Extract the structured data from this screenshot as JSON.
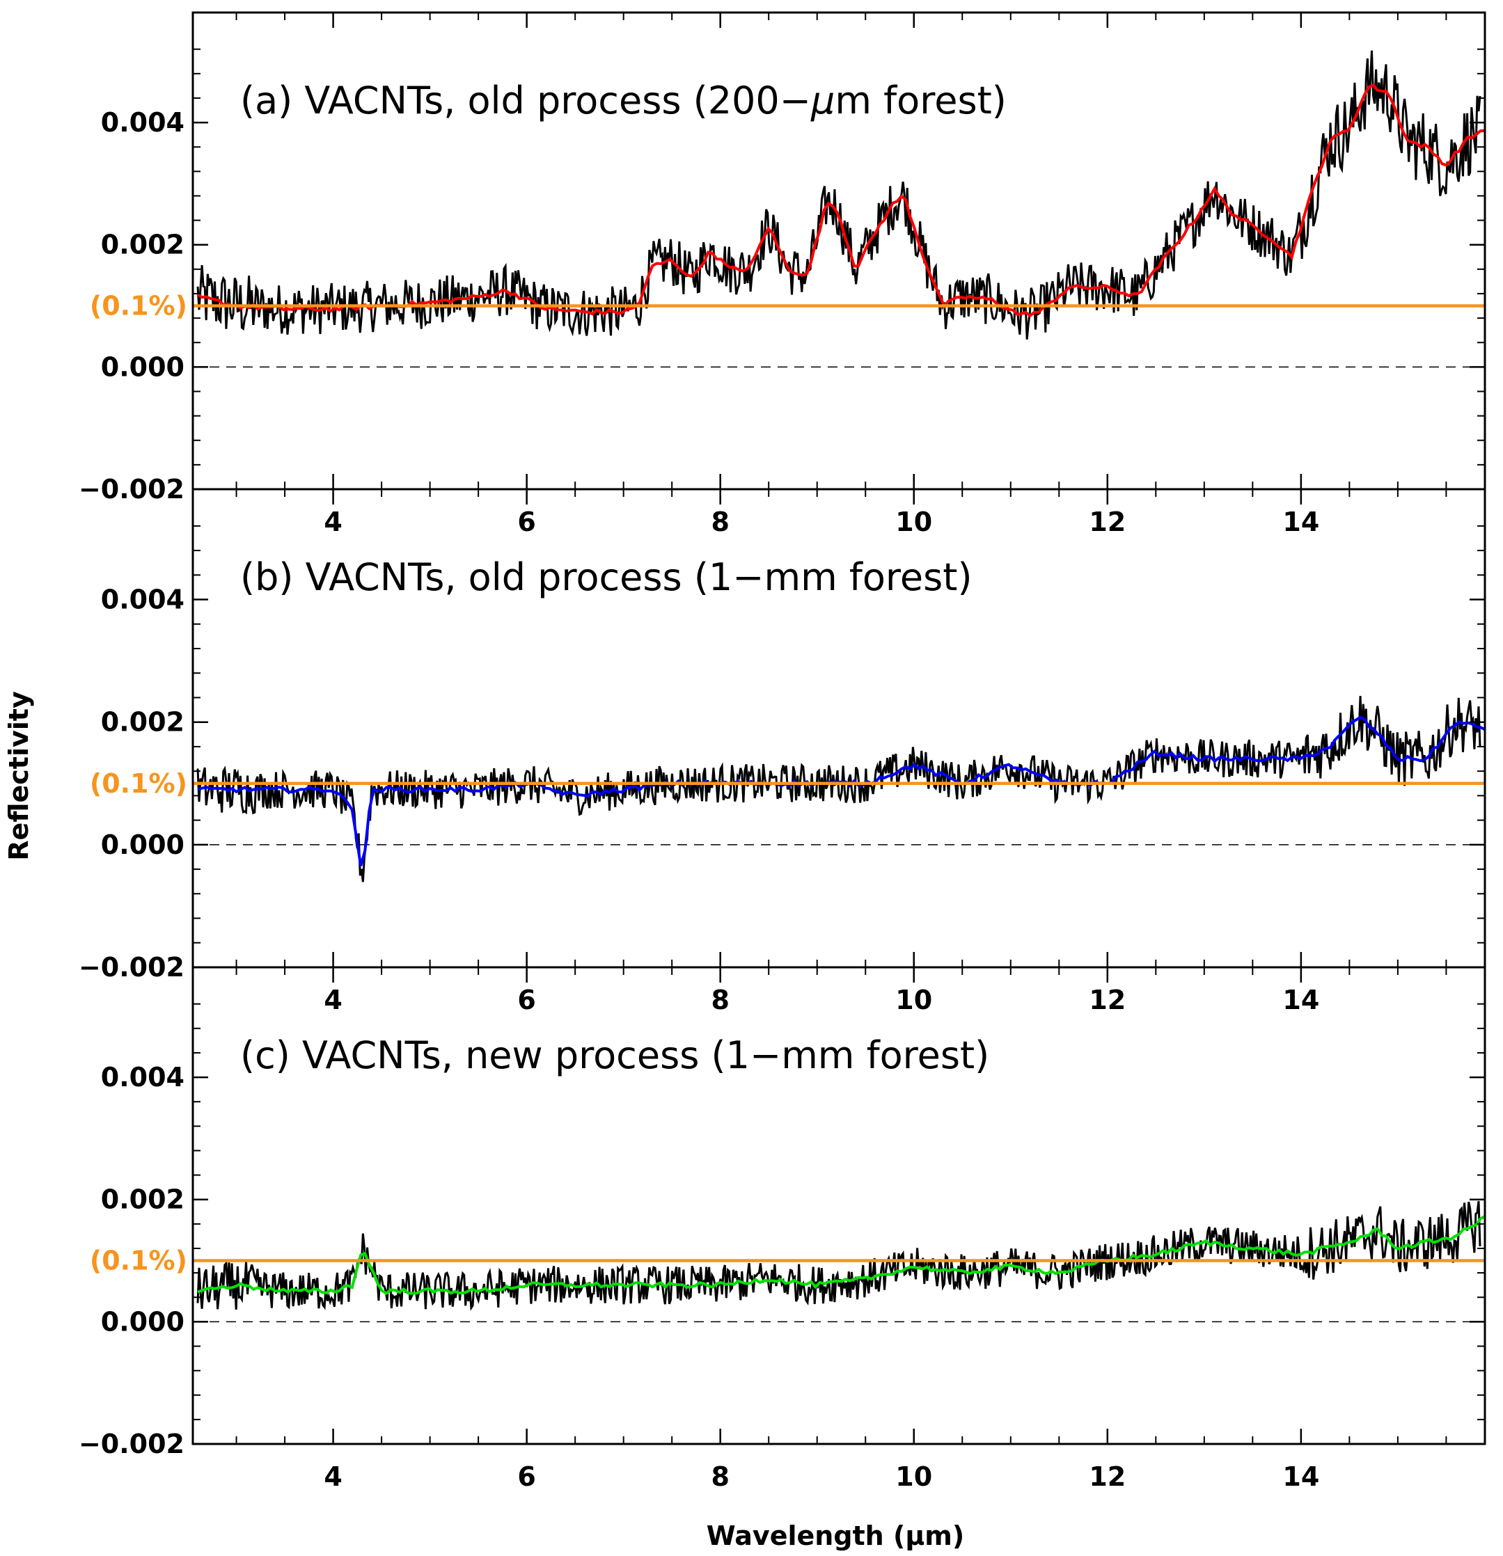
{
  "chart_data": {
    "type": "line",
    "xlabel": "Wavelength (μm)",
    "ylabel": "Reflectivity",
    "xlim": [
      2.55,
      15.9
    ],
    "ylim": [
      -0.002,
      0.0058
    ],
    "x_ticks": [
      4,
      6,
      8,
      10,
      12,
      14
    ],
    "x_tick_labels": [
      "4",
      "6",
      "8",
      "10",
      "12",
      "14"
    ],
    "y_ticks": [
      -0.002,
      0.0,
      0.002,
      0.004
    ],
    "y_tick_labels": [
      "−0.002",
      "0.000",
      "0.002",
      "0.004"
    ],
    "reference_line": {
      "value": 0.001,
      "label": "(0.1%)",
      "color": "#f7941d"
    },
    "zero_line": {
      "value": 0.0,
      "style": "dashed"
    },
    "panels": [
      {
        "id": "a",
        "title": "(a) VACNTs, old process (200-μm forest)",
        "title_main": "(a) VACNTs, old process (200−",
        "title_mu": "μ",
        "title_rest": "m forest)",
        "series": [
          {
            "name": "raw",
            "color": "#000000",
            "noise": 0.0004
          },
          {
            "name": "smoothed",
            "color": "#ff0000",
            "x": [
              2.6,
              3.0,
              3.5,
              4.0,
              4.5,
              5.0,
              5.5,
              5.8,
              6.2,
              6.6,
              7.0,
              7.15,
              7.3,
              7.5,
              7.7,
              7.9,
              8.1,
              8.3,
              8.5,
              8.7,
              8.9,
              9.1,
              9.2,
              9.4,
              9.6,
              9.8,
              9.9,
              10.1,
              10.3,
              10.5,
              10.8,
              11.1,
              11.3,
              11.6,
              12.0,
              12.3,
              12.6,
              12.9,
              13.1,
              13.3,
              13.5,
              13.7,
              13.9,
              14.1,
              14.3,
              14.5,
              14.7,
              14.9,
              15.1,
              15.3,
              15.5,
              15.7,
              15.9
            ],
            "y": [
              0.00115,
              0.001,
              0.00095,
              0.00095,
              0.001,
              0.00105,
              0.00115,
              0.00125,
              0.00095,
              0.0009,
              0.0009,
              0.001,
              0.00165,
              0.00175,
              0.00145,
              0.0019,
              0.0016,
              0.0016,
              0.0023,
              0.0016,
              0.0015,
              0.0027,
              0.0026,
              0.0016,
              0.0022,
              0.0027,
              0.0028,
              0.0018,
              0.001,
              0.00115,
              0.0011,
              0.00085,
              0.0009,
              0.0013,
              0.0013,
              0.00115,
              0.0018,
              0.0024,
              0.0029,
              0.0025,
              0.0023,
              0.0021,
              0.0018,
              0.0028,
              0.0037,
              0.0039,
              0.0046,
              0.0045,
              0.0037,
              0.0036,
              0.0033,
              0.0037,
              0.0039
            ]
          }
        ]
      },
      {
        "id": "b",
        "title": "(b) VACNTs, old process (1-mm forest)",
        "title_main": "(b) VACNTs, old process (1−mm forest)",
        "title_mu": "",
        "title_rest": "",
        "series": [
          {
            "name": "raw",
            "color": "#000000",
            "noise": 0.0003
          },
          {
            "name": "smoothed",
            "color": "#0000ff",
            "x": [
              2.6,
              3.0,
              3.5,
              4.0,
              4.2,
              4.3,
              4.4,
              4.6,
              5.0,
              5.5,
              6.0,
              6.5,
              7.0,
              7.5,
              8.0,
              8.5,
              9.0,
              9.5,
              10.0,
              10.5,
              11.0,
              11.5,
              12.0,
              12.5,
              13.0,
              13.5,
              14.0,
              14.3,
              14.6,
              14.8,
              15.0,
              15.3,
              15.6,
              15.9
            ],
            "y": [
              0.0009,
              0.0009,
              0.0009,
              0.0009,
              0.0006,
              -0.0005,
              0.0009,
              0.0009,
              0.0009,
              0.0009,
              0.001,
              0.0008,
              0.0009,
              0.001,
              0.001,
              0.001,
              0.001,
              0.001,
              0.0013,
              0.001,
              0.0013,
              0.001,
              0.001,
              0.0015,
              0.0014,
              0.0014,
              0.0014,
              0.0016,
              0.0021,
              0.0018,
              0.0014,
              0.0014,
              0.002,
              0.0019
            ]
          }
        ]
      },
      {
        "id": "c",
        "title": "(c) VACNTs, new process (1-mm forest)",
        "title_main": "(c) VACNTs, new process (1−mm forest)",
        "title_mu": "",
        "title_rest": "",
        "series": [
          {
            "name": "raw",
            "color": "#000000",
            "noise": 0.0003
          },
          {
            "name": "smoothed",
            "color": "#00e000",
            "x": [
              2.6,
              3.0,
              3.5,
              4.0,
              4.2,
              4.3,
              4.5,
              5.0,
              5.5,
              6.0,
              6.5,
              7.0,
              7.5,
              8.0,
              8.5,
              9.0,
              9.5,
              10.0,
              10.5,
              11.0,
              11.5,
              12.0,
              12.5,
              13.0,
              13.5,
              14.0,
              14.5,
              14.8,
              15.0,
              15.3,
              15.6,
              15.9
            ],
            "y": [
              0.0005,
              0.0006,
              0.0005,
              0.0005,
              0.0006,
              0.0012,
              0.0005,
              0.0005,
              0.0005,
              0.0006,
              0.0006,
              0.0006,
              0.0006,
              0.0006,
              0.0007,
              0.0006,
              0.0007,
              0.0009,
              0.0008,
              0.0009,
              0.0008,
              0.001,
              0.0011,
              0.0013,
              0.0012,
              0.0011,
              0.0013,
              0.0015,
              0.0012,
              0.0013,
              0.0014,
              0.0017
            ]
          }
        ]
      }
    ]
  }
}
